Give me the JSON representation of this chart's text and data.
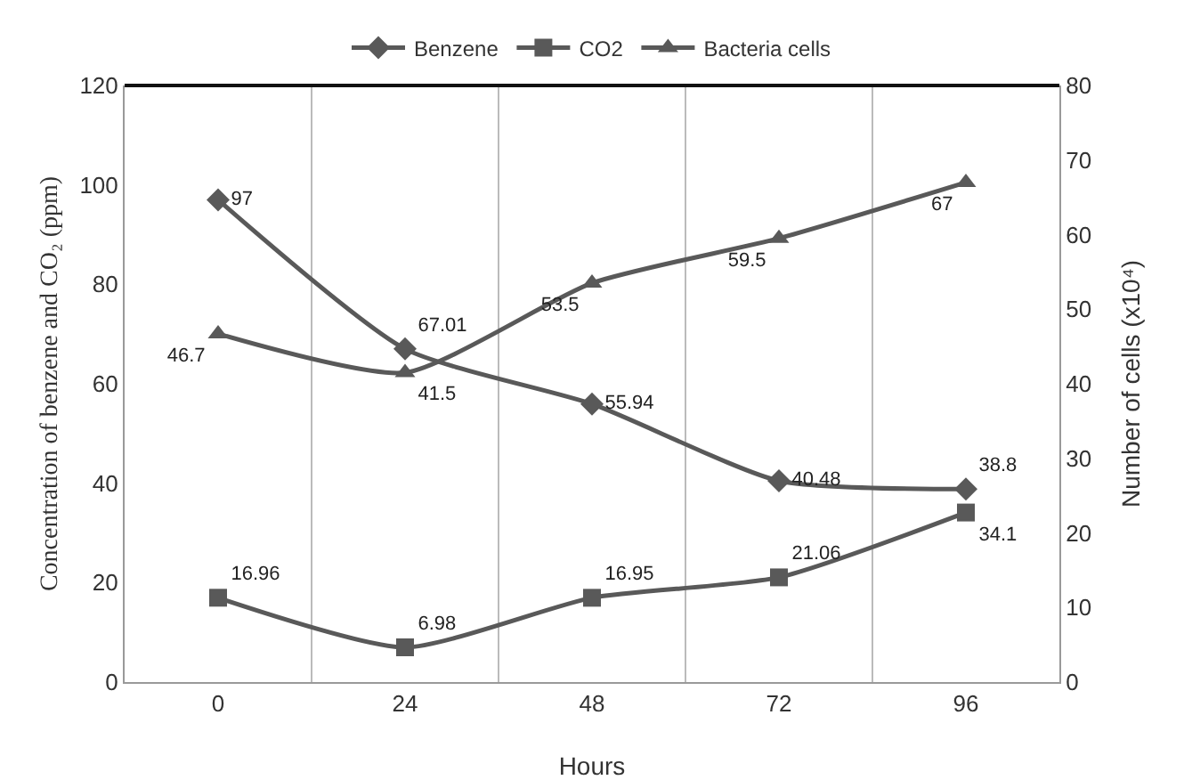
{
  "chart_data": {
    "type": "line",
    "xlabel": "Hours",
    "ylabel": "Concentration of benzene and CO₂ (ppm)",
    "y2label": "Number of cells (x10⁴)",
    "categories": [
      "0",
      "24",
      "48",
      "72",
      "96"
    ],
    "series": [
      {
        "name": "Benzene",
        "color": "#595959",
        "marker": "diamond",
        "values": [
          97,
          67.01,
          55.94,
          40.48,
          38.8
        ]
      },
      {
        "name": "CO2",
        "color": "#595959",
        "marker": "square",
        "values": [
          16.96,
          6.98,
          16.95,
          21.06,
          34.1
        ]
      },
      {
        "name": "Bacteria cells",
        "color": "#595959",
        "marker": "triangle",
        "axis": "y2",
        "values": [
          46.7,
          41.5,
          53.5,
          59.5,
          67
        ]
      }
    ],
    "ylim": [
      0,
      120
    ],
    "yticks": [
      0,
      20,
      40,
      60,
      80,
      100,
      120
    ],
    "y2lim": [
      0,
      80
    ],
    "y2ticks": [
      0,
      10,
      20,
      30,
      40,
      50,
      60,
      70,
      80
    ],
    "grid": "x",
    "legend": "top",
    "data_labels": true,
    "line_style": "solid"
  }
}
